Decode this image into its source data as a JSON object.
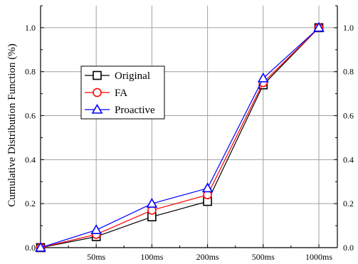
{
  "chart_data": {
    "type": "line",
    "title": "",
    "xlabel": "",
    "ylabel": "Cumulative Distribution Function (%)",
    "categories": [
      "",
      "50ms",
      "100ms",
      "200ms",
      "500ms",
      "1000ms"
    ],
    "y_ticks": [
      "0.0",
      "0.2",
      "0.4",
      "0.6",
      "0.8",
      "1.0"
    ],
    "ylim": [
      0,
      1.1
    ],
    "grid": true,
    "legend_position": "center-left",
    "series": [
      {
        "name": "Original",
        "color": "#000000",
        "marker": "square",
        "values": [
          0.0,
          0.05,
          0.14,
          0.21,
          0.74,
          1.0
        ]
      },
      {
        "name": "FA",
        "color": "#ff0000",
        "marker": "circle",
        "values": [
          0.0,
          0.06,
          0.17,
          0.24,
          0.75,
          1.0
        ]
      },
      {
        "name": "Proactive",
        "color": "#0000ff",
        "marker": "triangle",
        "values": [
          0.0,
          0.08,
          0.2,
          0.27,
          0.77,
          1.0
        ]
      }
    ]
  }
}
